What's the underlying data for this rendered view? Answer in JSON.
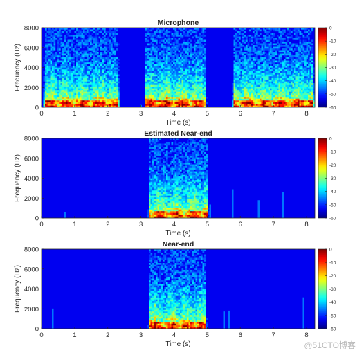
{
  "watermark": "@51CTO博客",
  "chart_data": [
    {
      "type": "heatmap",
      "title": "Microphone",
      "xlabel": "Time (s)",
      "ylabel": "Frequency (Hz)",
      "xlim": [
        0,
        8.25
      ],
      "ylim": [
        0,
        8000
      ],
      "x_ticks": [
        0,
        1,
        2,
        3,
        4,
        5,
        6,
        7,
        8
      ],
      "y_ticks": [
        0,
        2000,
        4000,
        6000,
        8000
      ],
      "colorbar": {
        "range": [
          -60,
          0
        ],
        "ticks": [
          0,
          -10,
          -20,
          -30,
          -40,
          -50,
          -60
        ],
        "colormap": "jet"
      },
      "active_segments": [
        [
          0.05,
          2.35
        ],
        [
          3.1,
          5.0
        ],
        [
          5.75,
          8.25
        ]
      ]
    },
    {
      "type": "heatmap",
      "title": "Estimated Near-end",
      "xlabel": "Time (s)",
      "ylabel": "Frequency (Hz)",
      "xlim": [
        0,
        8.25
      ],
      "ylim": [
        0,
        8000
      ],
      "x_ticks": [
        0,
        1,
        2,
        3,
        4,
        5,
        6,
        7,
        8
      ],
      "y_ticks": [
        0,
        2000,
        4000,
        6000,
        8000
      ],
      "colorbar": {
        "range": [
          -60,
          0
        ],
        "ticks": [
          0,
          -10,
          -20,
          -30,
          -40,
          -50,
          -60
        ],
        "colormap": "jet"
      },
      "active_segments": [
        [
          3.2,
          5.05
        ]
      ]
    },
    {
      "type": "heatmap",
      "title": "Near-end",
      "xlabel": "Time (s)",
      "ylabel": "Frequency (Hz)",
      "xlim": [
        0,
        8.25
      ],
      "ylim": [
        0,
        8000
      ],
      "x_ticks": [
        0,
        1,
        2,
        3,
        4,
        5,
        6,
        7,
        8
      ],
      "y_ticks": [
        0,
        2000,
        4000,
        6000,
        8000
      ],
      "colorbar": {
        "range": [
          -60,
          0
        ],
        "ticks": [
          0,
          -10,
          -20,
          -30,
          -40,
          -50,
          -60
        ],
        "colormap": "jet"
      },
      "active_segments": [
        [
          3.2,
          5.0
        ]
      ]
    }
  ]
}
